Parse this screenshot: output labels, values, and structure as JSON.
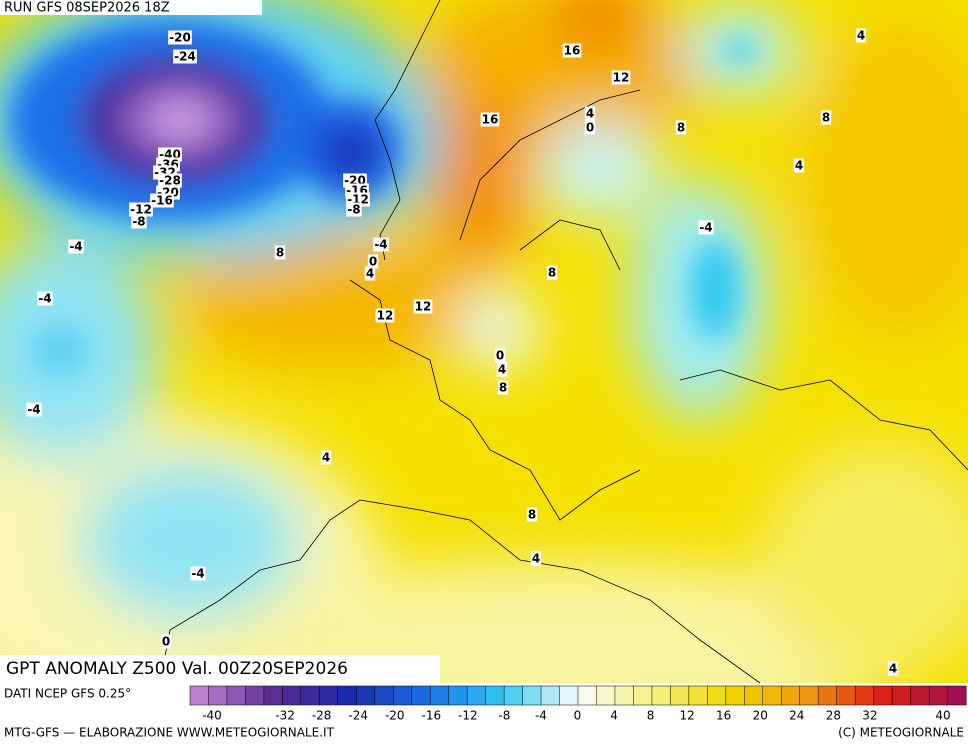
{
  "header": {
    "run": "RUN GFS 08SEP2026 18Z"
  },
  "map": {
    "title": "GPT ANOMALY Z500 Val. 00Z20SEP2026",
    "labels": [
      -20,
      -24,
      -40,
      -36,
      -32,
      -28,
      -20,
      -16,
      -12,
      -8,
      -20,
      -16,
      -12,
      -8,
      -4,
      -4,
      -4,
      -4,
      0,
      4,
      8,
      12,
      12,
      16,
      16,
      12,
      4,
      0,
      8,
      8,
      4,
      4,
      -4,
      8,
      0,
      4,
      8,
      4,
      8,
      4,
      -4,
      0,
      4
    ]
  },
  "colorbar": {
    "source": "DATI NCEP GFS 0.25°",
    "ticks": [
      -40,
      -32,
      -28,
      -24,
      -20,
      -16,
      -12,
      -8,
      -4,
      0,
      4,
      8,
      12,
      16,
      20,
      24,
      28,
      32,
      40
    ],
    "colors": [
      "#c080d0",
      "#5a2a90",
      "#1a2aa8",
      "#1a70e8",
      "#30c8f0",
      "#f8fcf8",
      "#f8f080",
      "#f0d800",
      "#f09a10",
      "#e02010",
      "#a01050"
    ]
  },
  "footer": {
    "left": "MTG-GFS — ELABORAZIONE WWW.METEOGIORNALE.IT",
    "right": "(C) METEOGIORNALE"
  }
}
